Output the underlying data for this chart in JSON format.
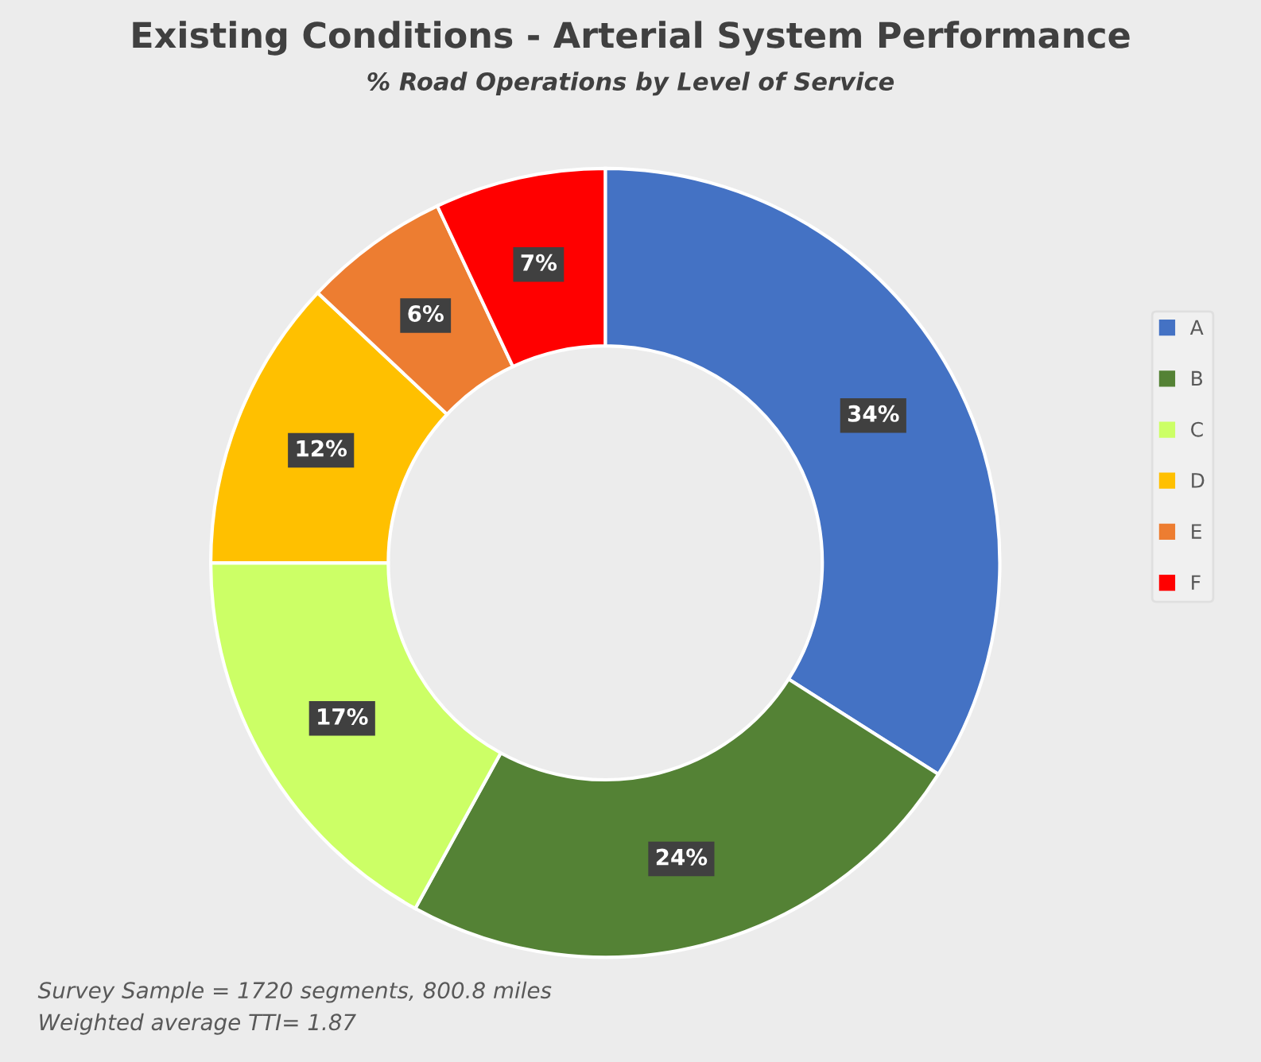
{
  "chart_data": {
    "type": "donut",
    "title": "Existing Conditions - Arterial System Performance",
    "subtitle": "% Road Operations by Level of Service",
    "categories": [
      "A",
      "B",
      "C",
      "D",
      "E",
      "F"
    ],
    "values": [
      34,
      24,
      17,
      12,
      6,
      7
    ],
    "colors": [
      "#4472c4",
      "#548235",
      "#ccff66",
      "#ffc000",
      "#ed7d31",
      "#ff0000"
    ],
    "value_labels": [
      "34%",
      "24%",
      "17%",
      "12%",
      "6%",
      "7%"
    ],
    "legend": "right",
    "annotations": [
      "Survey Sample = 1720 segments, 800.8 miles",
      "Weighted average TTI= 1.87"
    ]
  }
}
